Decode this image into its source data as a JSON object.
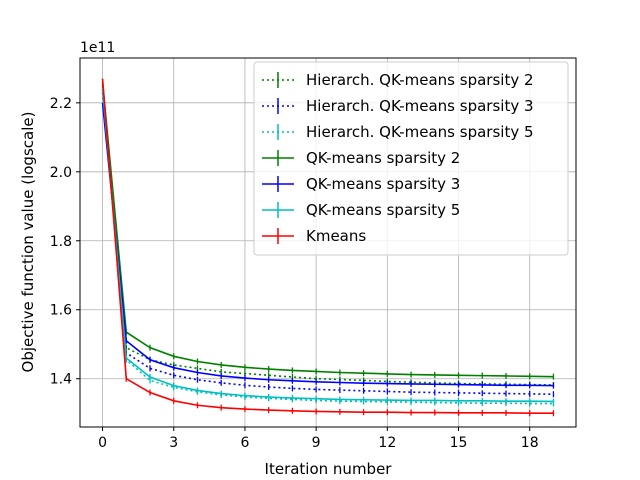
{
  "chart_data": {
    "type": "line",
    "title": "",
    "xlabel": "Iteration number",
    "ylabel": "Objective function value (logscale)",
    "y_offset_label": "1e11",
    "xlim": [
      -0.95,
      19.95
    ],
    "ylim": [
      1.26,
      2.33
    ],
    "xticks": [
      0,
      3,
      6,
      9,
      12,
      15,
      18
    ],
    "yticks": [
      1.4,
      1.6,
      1.8,
      2.0,
      2.2
    ],
    "ytick_labels": [
      "1.4",
      "1.6",
      "1.8",
      "2.0",
      "2.2"
    ],
    "grid": true,
    "legend_position": "top-right",
    "x": [
      0,
      1,
      2,
      3,
      4,
      5,
      6,
      7,
      8,
      9,
      10,
      11,
      12,
      13,
      14,
      15,
      16,
      17,
      18,
      19
    ],
    "series": [
      {
        "name": "Hierarch. QK-means sparsity 2",
        "color": "#008000",
        "style": "dotted",
        "values": [
          2.25,
          1.49,
          1.455,
          1.44,
          1.43,
          1.42,
          1.415,
          1.41,
          1.405,
          1.4,
          1.398,
          1.395,
          1.392,
          1.39,
          1.388,
          1.386,
          1.385,
          1.384,
          1.383,
          1.382
        ]
      },
      {
        "name": "Hierarch. QK-means sparsity 3",
        "color": "#0000ff",
        "style": "dotted",
        "values": [
          2.23,
          1.475,
          1.43,
          1.41,
          1.397,
          1.388,
          1.381,
          1.376,
          1.372,
          1.369,
          1.367,
          1.365,
          1.363,
          1.361,
          1.36,
          1.359,
          1.358,
          1.357,
          1.356,
          1.355
        ]
      },
      {
        "name": "Hierarch. QK-means sparsity 5",
        "color": "#00bfbf",
        "style": "dotted",
        "values": [
          2.24,
          1.455,
          1.395,
          1.375,
          1.362,
          1.353,
          1.347,
          1.343,
          1.34,
          1.337,
          1.335,
          1.334,
          1.333,
          1.332,
          1.331,
          1.33,
          1.329,
          1.329,
          1.328,
          1.328
        ]
      },
      {
        "name": "QK-means sparsity 2",
        "color": "#008000",
        "style": "solid",
        "values": [
          2.26,
          1.535,
          1.49,
          1.465,
          1.45,
          1.44,
          1.433,
          1.428,
          1.424,
          1.421,
          1.418,
          1.416,
          1.414,
          1.412,
          1.411,
          1.41,
          1.409,
          1.408,
          1.407,
          1.406
        ]
      },
      {
        "name": "QK-means sparsity 3",
        "color": "#0000ff",
        "style": "solid",
        "values": [
          2.2,
          1.51,
          1.455,
          1.432,
          1.418,
          1.408,
          1.402,
          1.397,
          1.394,
          1.391,
          1.389,
          1.387,
          1.386,
          1.385,
          1.384,
          1.383,
          1.382,
          1.381,
          1.381,
          1.38
        ]
      },
      {
        "name": "QK-means sparsity 5",
        "color": "#00bfbf",
        "style": "solid",
        "values": [
          2.24,
          1.46,
          1.405,
          1.38,
          1.366,
          1.357,
          1.351,
          1.347,
          1.344,
          1.342,
          1.34,
          1.339,
          1.338,
          1.337,
          1.337,
          1.336,
          1.336,
          1.335,
          1.335,
          1.334
        ]
      },
      {
        "name": "Kmeans",
        "color": "#ff0000",
        "style": "solid",
        "values": [
          2.27,
          1.4,
          1.36,
          1.336,
          1.323,
          1.316,
          1.312,
          1.309,
          1.307,
          1.305,
          1.304,
          1.303,
          1.303,
          1.302,
          1.302,
          1.301,
          1.301,
          1.301,
          1.3,
          1.3
        ]
      }
    ]
  }
}
